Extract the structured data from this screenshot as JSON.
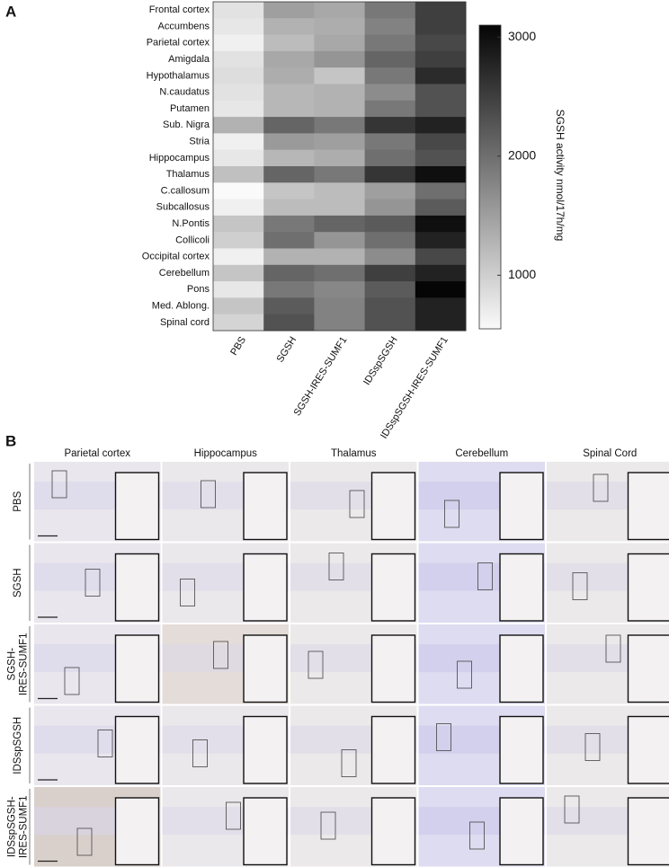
{
  "chart_data": {
    "type": "heatmap",
    "panel_label": "A",
    "rows": [
      "Frontal cortex",
      "Accumbens",
      "Parietal cortex",
      "Amigdala",
      "Hypothalamus",
      "N.caudatus",
      "Putamen",
      "Sub. Nigra",
      "Stria",
      "Hippocampus",
      "Thalamus",
      "C.callosum",
      "Subcallosus",
      "N.Pontis",
      "Collicoli",
      "Occipital cortex",
      "Cerebellum",
      "Pons",
      "Med. Ablong.",
      "Spinal cord"
    ],
    "categories": [
      "PBS",
      "SGSH",
      "SGSH-IRES-SUMF1",
      "IDSspSGSH",
      "IDSspSGSH-IRES-SUMF1"
    ],
    "values": [
      [
        800,
        1500,
        1400,
        1900,
        2500
      ],
      [
        750,
        1300,
        1350,
        1800,
        2500
      ],
      [
        650,
        1200,
        1400,
        1900,
        2400
      ],
      [
        800,
        1400,
        1600,
        2100,
        2500
      ],
      [
        850,
        1350,
        1100,
        1900,
        2700
      ],
      [
        800,
        1250,
        1300,
        1700,
        2300
      ],
      [
        750,
        1250,
        1300,
        1900,
        2300
      ],
      [
        1300,
        2100,
        1900,
        2600,
        2800
      ],
      [
        650,
        1550,
        1500,
        1900,
        2400
      ],
      [
        750,
        1250,
        1350,
        2000,
        2300
      ],
      [
        1150,
        2100,
        1900,
        2600,
        3000
      ],
      [
        550,
        1100,
        1200,
        1500,
        2000
      ],
      [
        650,
        1200,
        1200,
        1600,
        2200
      ],
      [
        1100,
        1900,
        2100,
        2200,
        3000
      ],
      [
        1000,
        2000,
        1600,
        2000,
        2800
      ],
      [
        650,
        1300,
        1300,
        1700,
        2400
      ],
      [
        1100,
        2100,
        2000,
        2500,
        2800
      ],
      [
        750,
        1900,
        1750,
        2200,
        3100
      ],
      [
        1100,
        2200,
        1800,
        2300,
        2800
      ],
      [
        950,
        2300,
        1800,
        2300,
        2800
      ]
    ],
    "colorbar_label": "SGSH activity nmol/17h/mg",
    "clim": [
      550,
      3100
    ],
    "cticks": [
      1000,
      2000,
      3000
    ]
  },
  "panel_b": {
    "panel_label": "B",
    "columns": [
      "Parietal cortex",
      "Hippocampus",
      "Thalamus",
      "Cerebellum",
      "Spinal Cord"
    ],
    "rows": [
      [
        "PBS"
      ],
      [
        "SGSH"
      ],
      [
        "SGSH-",
        "IRES-SUMF1"
      ],
      [
        "IDSspSGSH"
      ],
      [
        "IDSspSGSH-",
        "IRES-SUMF1"
      ]
    ]
  }
}
